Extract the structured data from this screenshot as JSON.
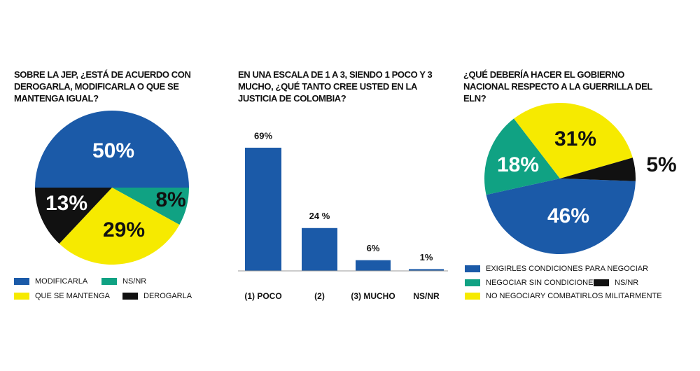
{
  "chart_data": [
    {
      "type": "pie",
      "title": "SOBRE LA JEP, ¿ESTÁ DE ACUERDO CON DEROGARLA, MODIFICARLA O QUE SE MANTENGA IGUAL?",
      "categories": [
        "MODIFICARLA",
        "NS/NR",
        "QUE SE MANTENGA",
        "DEROGARLA"
      ],
      "values": [
        50,
        8,
        29,
        13
      ],
      "value_labels": [
        "50%",
        "8%",
        "29%",
        "13%"
      ],
      "colors": [
        "#1b5aa8",
        "#10a283",
        "#f6ea00",
        "#111111"
      ]
    },
    {
      "type": "bar",
      "title": "EN UNA ESCALA DE 1 A 3, SIENDO 1 POCO Y 3 MUCHO, ¿QUÉ TANTO CREE USTED EN LA JUSTICIA DE COLOMBIA?",
      "categories": [
        "(1) POCO",
        "(2)",
        "(3) MUCHO",
        "NS/NR"
      ],
      "values": [
        69,
        24,
        6,
        1
      ],
      "value_labels": [
        "69%",
        "24 %",
        "6%",
        "1%"
      ],
      "color": "#1b5aa8"
    },
    {
      "type": "pie",
      "title": "¿QUÉ DEBERÍA HACER EL GOBIERNO NACIONAL RESPECTO A LA GUERRILLA DEL ELN?",
      "categories": [
        "EXIGIRLES CONDICIONES PARA NEGOCIAR",
        "NEGOCIAR SIN CONDICIONES",
        "NO NEGOCIARY COMBATIRLOS MILITARMENTE",
        "NS/NR"
      ],
      "values": [
        46,
        18,
        31,
        5
      ],
      "value_labels": [
        "46%",
        "18%",
        "31%",
        "5%"
      ],
      "colors": [
        "#1b5aa8",
        "#10a283",
        "#f6ea00",
        "#111111"
      ]
    }
  ]
}
